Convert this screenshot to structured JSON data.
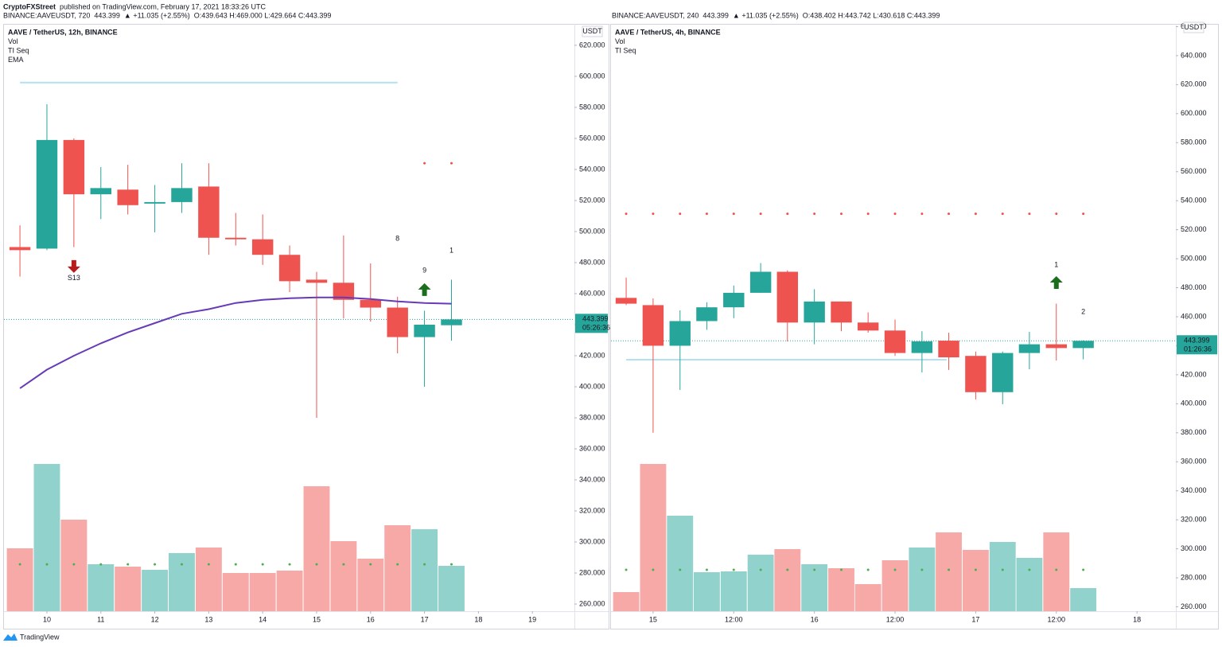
{
  "header": {
    "author": "CryptoFXStreet",
    "published": "published on TradingView.com, February 17, 2021 18:33:26 UTC"
  },
  "footer": {
    "brand": "TradingView"
  },
  "chart_data": [
    {
      "type": "candlestick",
      "symbol": "BINANCE:AAVEUSDT, 720",
      "change": "▲ +11.035 (+2.55%)",
      "ohlc": "O:439.643 H:469.000 L:429.664 C:443.399",
      "legend": [
        "AAVE / TetherUS, 12h, BINANCE",
        "Vol",
        "TI Seq",
        "EMA"
      ],
      "currency": "USDT",
      "x": [
        9.5,
        10,
        10.5,
        11,
        11.5,
        12,
        12.5,
        13,
        13.5,
        14,
        14.5,
        15,
        15.5,
        16,
        16.5,
        17,
        17.5
      ],
      "open": [
        490,
        489,
        559,
        524,
        527,
        518,
        519,
        529,
        496,
        495,
        485,
        469,
        467,
        456,
        451,
        432,
        439.643
      ],
      "high": [
        504,
        582,
        560,
        541.5,
        543,
        530,
        544,
        544,
        512,
        511,
        491,
        474,
        497.5,
        479.5,
        458,
        449,
        469
      ],
      "low": [
        471,
        488,
        490,
        508,
        511,
        499.5,
        512,
        485,
        491,
        478.5,
        461,
        380,
        444,
        442,
        421.5,
        400,
        429.664
      ],
      "close": [
        488,
        559,
        524,
        528,
        517,
        519,
        528,
        496,
        495,
        485,
        468,
        467,
        456,
        451,
        432,
        440,
        443.399
      ],
      "volume": [
        79,
        185,
        115,
        59,
        56,
        52,
        73,
        80,
        48,
        48,
        51,
        157,
        88,
        66,
        108,
        103,
        57
      ],
      "vlim": [
        0,
        200
      ],
      "ema": {
        "color": "#673ab7",
        "values": [
          399,
          411,
          420,
          428,
          435,
          441,
          447,
          450,
          454,
          456,
          457,
          457.5,
          457.5,
          456.5,
          455,
          454,
          453.5
        ]
      },
      "resistance_dots": {
        "color": "#ef5350",
        "values": [
          null,
          null,
          null,
          null,
          null,
          null,
          null,
          null,
          null,
          null,
          null,
          null,
          null,
          null,
          null,
          544,
          544
        ]
      },
      "support_dots": {
        "color": "#4caf50",
        "values": [
          285.6,
          285.6,
          285.6,
          285.6,
          285.6,
          285.6,
          285.6,
          285.6,
          285.6,
          285.6,
          285.6,
          285.6,
          285.6,
          285.6,
          285.6,
          285.6,
          285.6
        ]
      },
      "hlines": [
        {
          "value": 596,
          "x": [
            9.5,
            16.5
          ],
          "color": "#b3e0f2"
        }
      ],
      "markers": [
        {
          "x": 10.5,
          "value": 470,
          "label": "S13",
          "color": "#ff9800"
        },
        {
          "x": 16.5,
          "value": 495.4,
          "label": "8",
          "color": "#ff9800"
        },
        {
          "x": 17,
          "value": 474.9,
          "label": "9",
          "color": "#ef5350"
        }
      ],
      "arrows": [
        {
          "x": 10.5,
          "value": 477.5,
          "direction": "down",
          "color": "#b71c1c"
        },
        {
          "x": 17,
          "value": 462.6,
          "direction": "up",
          "color": "#1b6e1b"
        }
      ],
      "annotation": {
        "x": 17.5,
        "value": 487.7,
        "label": "1",
        "color": "#ef5350"
      },
      "last_price": {
        "value": 443.399,
        "label": "443.399"
      },
      "countdown": "05:26:36",
      "up_color": "#26a69a",
      "down_color": "#ef5350",
      "volume_up_color": "#92d2cc",
      "volume_down_color": "#f7a9a7",
      "xlim": [
        9.204,
        19.779
      ],
      "ylim": [
        255.4,
        633.8
      ],
      "xticks": [
        10,
        11,
        12,
        13,
        14,
        15,
        16,
        17,
        18,
        19
      ],
      "yticks": [
        {
          "value": 260,
          "label": "260.000"
        },
        {
          "value": 280,
          "label": "280.000"
        },
        {
          "value": 300,
          "label": "300.000"
        },
        {
          "value": 320,
          "label": "320.000"
        },
        {
          "value": 340,
          "label": "340.000"
        },
        {
          "value": 360,
          "label": "360.000"
        },
        {
          "value": 380,
          "label": "380.000"
        },
        {
          "value": 400,
          "label": "400.000"
        },
        {
          "value": 420,
          "label": "420.000"
        },
        {
          "value": 440,
          "label": "440.000"
        },
        {
          "value": 460,
          "label": "460.000"
        },
        {
          "value": 480,
          "label": "480.000"
        },
        {
          "value": 500,
          "label": "500.000"
        },
        {
          "value": 520,
          "label": "520.000"
        },
        {
          "value": 540,
          "label": "540.000"
        },
        {
          "value": 560,
          "label": "560.000"
        },
        {
          "value": 580,
          "label": "580.000"
        },
        {
          "value": 600,
          "label": "600.000"
        },
        {
          "value": 620,
          "label": "620.000"
        }
      ]
    },
    {
      "type": "candlestick",
      "symbol": "BINANCE:AAVEUSDT, 240",
      "change": "▲ +11.035 (+2.55%)",
      "ohlc": "O:438.402 H:443.742 L:430.618 C:443.399",
      "legend": [
        "AAVE / TetherUS, 4h, BINANCE",
        "Vol",
        "TI Seq"
      ],
      "currency": "USDT",
      "x": [
        14.833,
        15,
        15.167,
        15.333,
        15.5,
        15.667,
        15.833,
        16,
        16.167,
        16.333,
        16.5,
        16.667,
        16.833,
        17,
        17.167,
        17.333,
        17.5,
        17.667
      ],
      "open": [
        473,
        468,
        440,
        457,
        466.5,
        476.5,
        491,
        456,
        470.5,
        456,
        450.5,
        435,
        443.5,
        433,
        408,
        435,
        441,
        438.402
      ],
      "high": [
        487,
        472.6,
        464.4,
        470,
        481.5,
        497,
        492,
        479,
        470.5,
        463,
        458,
        450,
        449,
        436,
        436,
        449.6,
        469,
        443.742
      ],
      "low": [
        468,
        380,
        409.5,
        451,
        459,
        476.5,
        443,
        441,
        450,
        449,
        433,
        421.6,
        423.3,
        403,
        399.7,
        423.8,
        429.8,
        430.618
      ],
      "close": [
        469,
        440,
        457,
        466.5,
        476.5,
        491,
        456,
        470.5,
        456,
        450.5,
        435,
        443,
        432,
        408,
        435,
        441,
        438.4,
        443.399
      ],
      "volume": [
        24,
        185,
        120,
        49,
        50,
        71,
        78,
        59,
        54,
        34,
        64,
        80,
        99,
        77,
        87,
        67,
        99,
        29
      ],
      "vlim": [
        0,
        200
      ],
      "resistance_dots": {
        "color": "#ef5350",
        "values": [
          531,
          531,
          531,
          531,
          531,
          531,
          531,
          531,
          531,
          531,
          531,
          531,
          531,
          531,
          531,
          531,
          531,
          531
        ]
      },
      "support_dots": {
        "color": "#4caf50",
        "values": [
          285.5,
          285.5,
          285.5,
          285.5,
          285.5,
          285.5,
          285.5,
          285.5,
          285.5,
          285.5,
          285.5,
          285.5,
          285.5,
          285.5,
          285.5,
          285.5,
          285.5,
          285.5
        ]
      },
      "hlines": [
        {
          "value": 430.4,
          "x": [
            14.833,
            16.82
          ],
          "color": "#b3e0f2"
        }
      ],
      "markers": [
        {
          "x": 17.5,
          "value": 495.7,
          "label": "1",
          "color": "#4caf50"
        }
      ],
      "arrows": [
        {
          "x": 17.5,
          "value": 483.6,
          "direction": "up",
          "color": "#1b6e1b"
        }
      ],
      "annotation": {
        "x": 17.667,
        "value": 463.3,
        "label": "2",
        "color": "#2ecc71"
      },
      "last_price": {
        "value": 443.399,
        "label": "443.399"
      },
      "countdown": "01:26:36",
      "up_color": "#26a69a",
      "down_color": "#ef5350",
      "volume_up_color": "#92d2cc",
      "volume_down_color": "#f7a9a7",
      "xlim": [
        14.739,
        18.241
      ],
      "ylim": [
        257,
        661.9
      ],
      "xticks": [
        15,
        {
          "value": 15.5,
          "label": "12:00"
        },
        16,
        {
          "value": 16.5,
          "label": "12:00"
        },
        17,
        {
          "value": 17.5,
          "label": "12:00"
        },
        18
      ],
      "yticks": [
        {
          "value": 260,
          "label": "260.000"
        },
        {
          "value": 280,
          "label": "280.000"
        },
        {
          "value": 300,
          "label": "300.000"
        },
        {
          "value": 320,
          "label": "320.000"
        },
        {
          "value": 340,
          "label": "340.000"
        },
        {
          "value": 360,
          "label": "360.000"
        },
        {
          "value": 380,
          "label": "380.000"
        },
        {
          "value": 400,
          "label": "400.000"
        },
        {
          "value": 420,
          "label": "420.000"
        },
        {
          "value": 440,
          "label": "440.000"
        },
        {
          "value": 460,
          "label": "460.000"
        },
        {
          "value": 480,
          "label": "480.000"
        },
        {
          "value": 500,
          "label": "500.000"
        },
        {
          "value": 520,
          "label": "520.000"
        },
        {
          "value": 540,
          "label": "540.000"
        },
        {
          "value": 560,
          "label": "560.000"
        },
        {
          "value": 580,
          "label": "580.000"
        },
        {
          "value": 600,
          "label": "600.000"
        },
        {
          "value": 620,
          "label": "620.000"
        },
        {
          "value": 640,
          "label": "640.000"
        },
        {
          "value": 660,
          "label": "660.000"
        }
      ]
    }
  ]
}
